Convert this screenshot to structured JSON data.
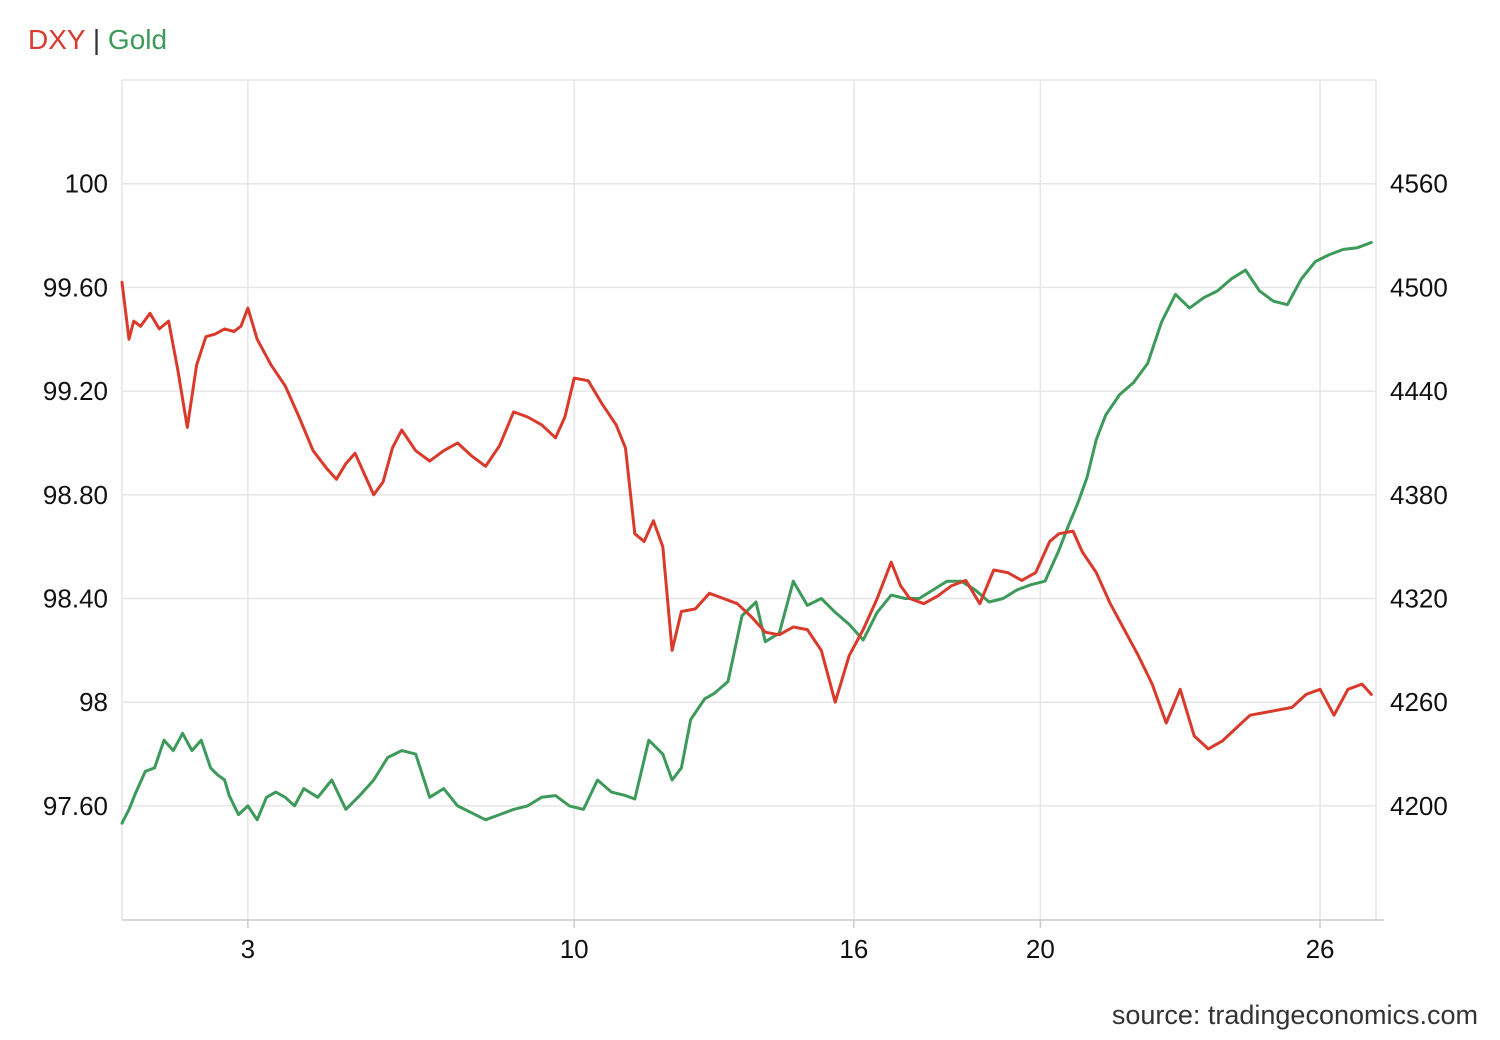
{
  "legend": {
    "dxy_label": "DXY",
    "separator": "|",
    "gold_label": "Gold"
  },
  "source": "source: tradingeconomics.com",
  "colors": {
    "dxy": "#d93a2b",
    "gold": "#3d9a5a",
    "grid": "#e6e6e6",
    "axis": "#cccccc"
  },
  "chart_data": {
    "type": "line",
    "grid": true,
    "legend_position": "top-left",
    "x_ticks": [
      {
        "x": 3,
        "label": "3"
      },
      {
        "x": 10,
        "label": "10"
      },
      {
        "x": 16,
        "label": "16"
      },
      {
        "x": 20,
        "label": "20"
      },
      {
        "x": 26,
        "label": "26"
      }
    ],
    "xlim": [
      0.3,
      27.2
    ],
    "y_left": {
      "lim": [
        97.16,
        100.4
      ],
      "ticks": [
        {
          "v": 97.6,
          "label": "97.60"
        },
        {
          "v": 98.0,
          "label": "98"
        },
        {
          "v": 98.4,
          "label": "98.40"
        },
        {
          "v": 98.8,
          "label": "98.80"
        },
        {
          "v": 99.2,
          "label": "99.20"
        },
        {
          "v": 99.6,
          "label": "99.60"
        },
        {
          "v": 100.0,
          "label": "100"
        }
      ]
    },
    "y_right": {
      "lim": [
        4134,
        4620
      ],
      "ticks": [
        {
          "v": 4200,
          "label": "4200"
        },
        {
          "v": 4260,
          "label": "4260"
        },
        {
          "v": 4320,
          "label": "4320"
        },
        {
          "v": 4380,
          "label": "4380"
        },
        {
          "v": 4440,
          "label": "4440"
        },
        {
          "v": 4500,
          "label": "4500"
        },
        {
          "v": 4560,
          "label": "4560"
        }
      ]
    },
    "series": [
      {
        "name": "DXY",
        "axis": "left",
        "x": [
          0.3,
          0.45,
          0.55,
          0.7,
          0.9,
          1.1,
          1.3,
          1.5,
          1.7,
          1.9,
          2.1,
          2.3,
          2.5,
          2.7,
          2.85,
          3.0,
          3.2,
          3.5,
          3.8,
          4.1,
          4.4,
          4.7,
          4.9,
          5.1,
          5.3,
          5.5,
          5.7,
          5.9,
          6.1,
          6.3,
          6.6,
          6.9,
          7.2,
          7.5,
          7.8,
          8.1,
          8.4,
          8.7,
          9.0,
          9.3,
          9.6,
          9.8,
          10.0,
          10.3,
          10.6,
          10.9,
          11.1,
          11.3,
          11.5,
          11.7,
          11.9,
          12.1,
          12.3,
          12.6,
          12.9,
          13.2,
          13.5,
          13.8,
          14.1,
          14.4,
          14.7,
          15.0,
          15.3,
          15.6,
          15.9,
          16.2,
          16.5,
          16.8,
          17.0,
          17.2,
          17.5,
          17.8,
          18.1,
          18.4,
          18.7,
          19.0,
          19.3,
          19.6,
          19.9,
          20.2,
          20.4,
          20.7,
          20.9,
          21.2,
          21.5,
          21.8,
          22.1,
          22.4,
          22.7,
          23.0,
          23.3,
          23.6,
          23.9,
          24.2,
          24.5,
          24.8,
          25.1,
          25.4,
          25.7,
          26.0,
          26.3,
          26.6,
          26.9,
          27.1
        ],
        "y": [
          99.62,
          99.4,
          99.47,
          99.45,
          99.5,
          99.44,
          99.47,
          99.28,
          99.06,
          99.3,
          99.41,
          99.42,
          99.44,
          99.43,
          99.45,
          99.52,
          99.4,
          99.3,
          99.22,
          99.1,
          98.97,
          98.9,
          98.86,
          98.92,
          98.96,
          98.88,
          98.8,
          98.85,
          98.98,
          99.05,
          98.97,
          98.93,
          98.97,
          99.0,
          98.95,
          98.91,
          98.99,
          99.12,
          99.1,
          99.07,
          99.02,
          99.1,
          99.25,
          99.24,
          99.15,
          99.07,
          98.98,
          98.65,
          98.62,
          98.7,
          98.6,
          98.2,
          98.35,
          98.36,
          98.42,
          98.4,
          98.38,
          98.33,
          98.27,
          98.26,
          98.29,
          98.28,
          98.2,
          98.0,
          98.18,
          98.28,
          98.4,
          98.54,
          98.45,
          98.4,
          98.38,
          98.41,
          98.45,
          98.47,
          98.38,
          98.51,
          98.5,
          98.47,
          98.5,
          98.62,
          98.65,
          98.66,
          98.58,
          98.5,
          98.38,
          98.28,
          98.18,
          98.07,
          97.92,
          98.05,
          97.87,
          97.82,
          97.85,
          97.9,
          97.95,
          97.96,
          97.97,
          97.98,
          98.03,
          98.05,
          97.95,
          98.05,
          98.07,
          98.03
        ]
      },
      {
        "name": "Gold",
        "axis": "right",
        "x": [
          0.3,
          0.45,
          0.6,
          0.8,
          1.0,
          1.2,
          1.4,
          1.6,
          1.8,
          2.0,
          2.2,
          2.35,
          2.5,
          2.6,
          2.8,
          3.0,
          3.2,
          3.4,
          3.6,
          3.8,
          4.0,
          4.2,
          4.5,
          4.8,
          5.1,
          5.4,
          5.7,
          6.0,
          6.3,
          6.6,
          6.9,
          7.2,
          7.5,
          7.8,
          8.1,
          8.4,
          8.7,
          9.0,
          9.3,
          9.6,
          9.9,
          10.2,
          10.5,
          10.8,
          11.1,
          11.3,
          11.6,
          11.9,
          12.1,
          12.3,
          12.5,
          12.8,
          13.0,
          13.3,
          13.6,
          13.9,
          14.1,
          14.4,
          14.7,
          15.0,
          15.3,
          15.6,
          15.9,
          16.2,
          16.5,
          16.8,
          17.1,
          17.4,
          17.7,
          18.0,
          18.3,
          18.6,
          18.9,
          19.2,
          19.5,
          19.8,
          20.1,
          20.4,
          20.6,
          20.8,
          21.0,
          21.2,
          21.4,
          21.7,
          22.0,
          22.3,
          22.6,
          22.9,
          23.2,
          23.5,
          23.8,
          24.1,
          24.4,
          24.7,
          25.0,
          25.3,
          25.6,
          25.9,
          26.2,
          26.5,
          26.8,
          27.1
        ],
        "y": [
          4190,
          4198,
          4208,
          4220,
          4222,
          4238,
          4232,
          4242,
          4232,
          4238,
          4222,
          4218,
          4215,
          4206,
          4195,
          4200,
          4192,
          4205,
          4208,
          4205,
          4200,
          4210,
          4205,
          4215,
          4198,
          4206,
          4215,
          4228,
          4232,
          4230,
          4205,
          4210,
          4200,
          4196,
          4192,
          4195,
          4198,
          4200,
          4205,
          4206,
          4200,
          4198,
          4215,
          4208,
          4206,
          4204,
          4238,
          4230,
          4215,
          4222,
          4250,
          4262,
          4265,
          4272,
          4310,
          4318,
          4295,
          4300,
          4330,
          4316,
          4320,
          4312,
          4305,
          4296,
          4312,
          4322,
          4320,
          4320,
          4325,
          4330,
          4330,
          4325,
          4318,
          4320,
          4325,
          4328,
          4330,
          4348,
          4362,
          4375,
          4390,
          4412,
          4426,
          4438,
          4445,
          4456,
          4480,
          4496,
          4488,
          4494,
          4498,
          4505,
          4510,
          4498,
          4492,
          4490,
          4505,
          4515,
          4519,
          4522,
          4523,
          4526
        ]
      }
    ]
  }
}
